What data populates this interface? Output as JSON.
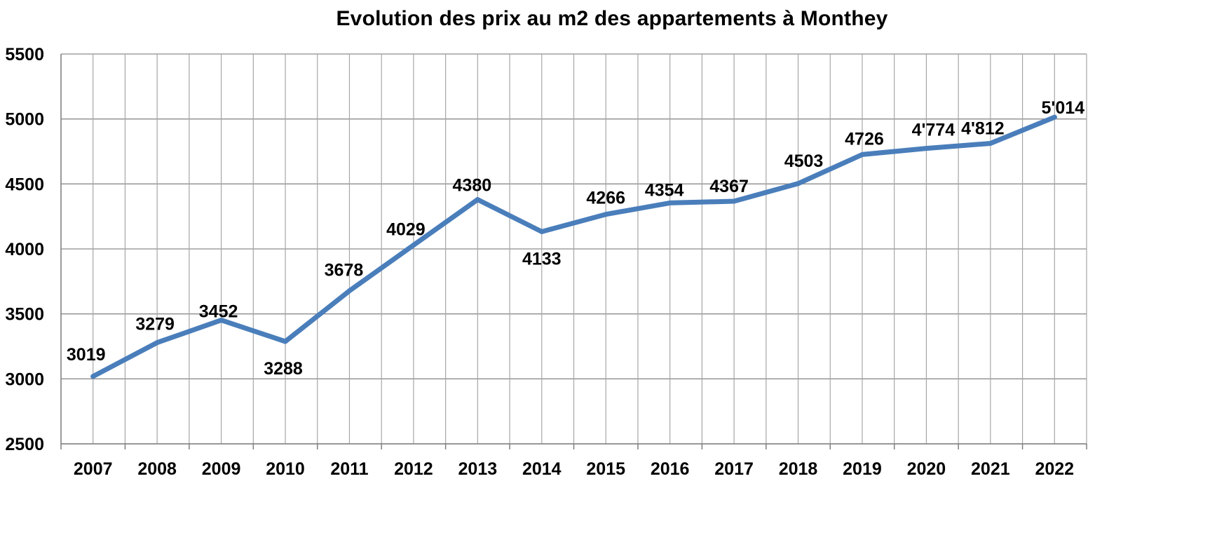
{
  "chart_data": {
    "type": "line",
    "title": "Evolution des prix au m2 des appartements à Monthey",
    "xlabel": "",
    "ylabel": "",
    "categories": [
      "2007",
      "2008",
      "2009",
      "2010",
      "2011",
      "2012",
      "2013",
      "2014",
      "2015",
      "2016",
      "2017",
      "2018",
      "2019",
      "2020",
      "2021",
      "2022"
    ],
    "series": [
      {
        "values": [
          3019,
          3279,
          3452,
          3288,
          3678,
          4029,
          4380,
          4133,
          4266,
          4354,
          4367,
          4503,
          4726,
          4774,
          4812,
          5014
        ],
        "data_labels": [
          "3019",
          "3279",
          "3452",
          "3288",
          "3678",
          "4029",
          "4380",
          "4133",
          "4266",
          "4354",
          "4367",
          "4503",
          "4726",
          "4'774",
          "4'812",
          "5'014"
        ],
        "color": "#4a7ebb"
      }
    ],
    "ylim": [
      2500,
      5500
    ],
    "yticks": [
      "2500",
      "3000",
      "3500",
      "4000",
      "4500",
      "5000",
      "5500"
    ],
    "grid": true,
    "legend": "none"
  }
}
